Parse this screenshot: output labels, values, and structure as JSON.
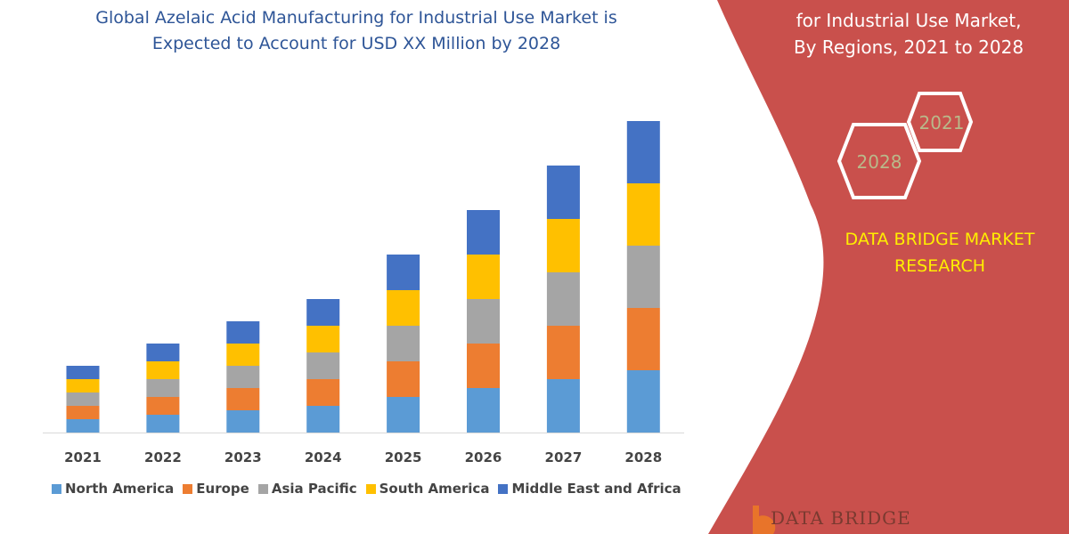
{
  "title": {
    "line1": "Global Azelaic Acid Manufacturing for Industrial Use Market is",
    "line2": "Expected to Account for USD XX Million by 2028"
  },
  "side_panel": {
    "title_line1": "for Industrial Use Market,",
    "title_line2": "By Regions, 2021 to 2028",
    "hex_2021": "2021",
    "hex_2028": "2028",
    "brand_line1": "DATA BRIDGE MARKET",
    "brand_line2": "RESEARCH",
    "logo_text": "DATA BRIDGE",
    "panel_color": "#c9504c",
    "brand_color": "#ffee00"
  },
  "chart_data": {
    "type": "bar",
    "stacked": true,
    "categories": [
      "2021",
      "2022",
      "2023",
      "2024",
      "2025",
      "2026",
      "2027",
      "2028"
    ],
    "series": [
      {
        "name": "North America",
        "color": "#5b9bd5",
        "values": [
          15,
          20,
          25,
          30,
          40,
          50,
          60,
          70
        ]
      },
      {
        "name": "Europe",
        "color": "#ed7d31",
        "values": [
          15,
          20,
          25,
          30,
          40,
          50,
          60,
          70
        ]
      },
      {
        "name": "Asia Pacific",
        "color": "#a5a5a5",
        "values": [
          15,
          20,
          25,
          30,
          40,
          50,
          60,
          70
        ]
      },
      {
        "name": "South America",
        "color": "#ffc000",
        "values": [
          15,
          20,
          25,
          30,
          40,
          50,
          60,
          70
        ]
      },
      {
        "name": "Middle East and Africa",
        "color": "#4472c4",
        "values": [
          15,
          20,
          25,
          30,
          40,
          50,
          60,
          70
        ]
      }
    ],
    "grid": false,
    "legend_position": "bottom"
  }
}
